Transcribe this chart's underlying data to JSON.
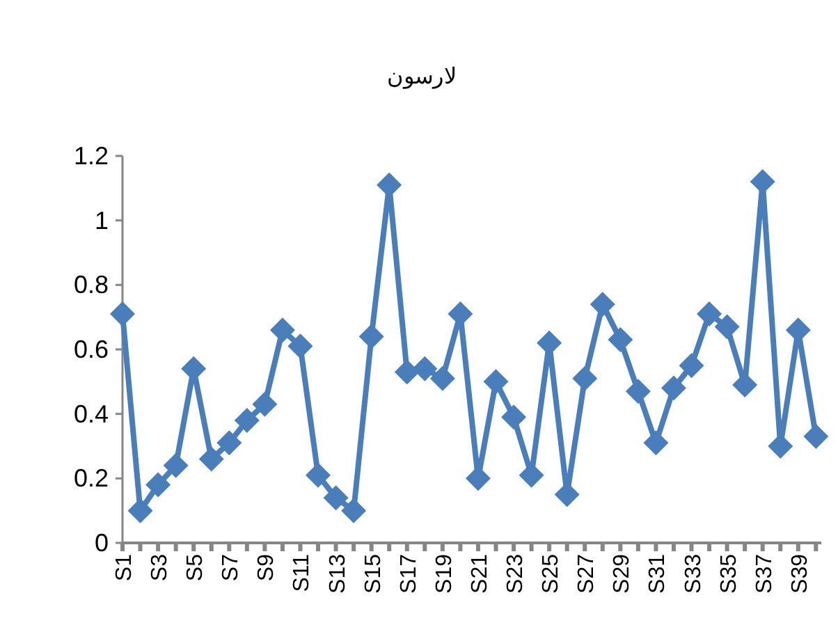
{
  "chart_data": {
    "type": "line",
    "title": "لارسون",
    "categories": [
      "S1",
      null,
      "S3",
      null,
      "S5",
      null,
      "S7",
      null,
      "S9",
      null,
      "S11",
      null,
      "S13",
      null,
      "S15",
      null,
      "S17",
      null,
      "S19",
      null,
      "S21",
      null,
      "S23",
      null,
      "S25",
      null,
      "S27",
      null,
      "S29",
      null,
      "S31",
      null,
      "S33",
      null,
      "S35",
      null,
      "S37",
      null,
      "S39",
      null
    ],
    "values": [
      0.71,
      0.1,
      0.18,
      0.24,
      0.54,
      0.26,
      0.31,
      0.38,
      0.43,
      0.66,
      0.61,
      0.21,
      0.14,
      0.1,
      0.64,
      1.11,
      0.53,
      0.54,
      0.51,
      0.71,
      0.2,
      0.5,
      0.39,
      0.21,
      0.62,
      0.15,
      0.51,
      0.74,
      0.63,
      0.47,
      0.31,
      0.48,
      0.55,
      0.71,
      0.67,
      0.49,
      1.12,
      0.3,
      0.66,
      0.33
    ],
    "color": "#4a7ebb",
    "marker": "diamond",
    "line_style": "solid",
    "grid": false,
    "ylim": [
      0,
      1.2
    ],
    "yticks": [
      0,
      0.2,
      0.4,
      0.6,
      0.8,
      1,
      1.2
    ]
  }
}
